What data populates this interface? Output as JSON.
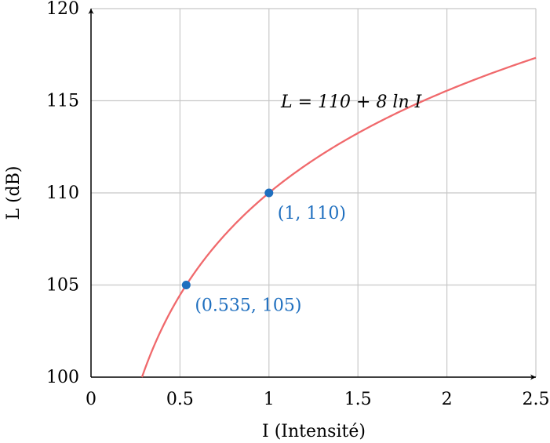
{
  "chart_data": {
    "type": "line",
    "title": "",
    "xlabel": "I (Intensité)",
    "ylabel": "L (dB)",
    "xlim": [
      0,
      2.5
    ],
    "ylim": [
      100,
      120
    ],
    "x_ticks": [
      0,
      0.5,
      1,
      1.5,
      2,
      2.5
    ],
    "x_tick_labels": [
      "0",
      "0.5",
      "1",
      "1.5",
      "2",
      "2.5"
    ],
    "y_ticks": [
      100,
      105,
      110,
      115,
      120
    ],
    "y_tick_labels": [
      "100",
      "105",
      "110",
      "115",
      "120"
    ],
    "grid": true,
    "series": [
      {
        "equation_label": "L = 110 + 8 ln I",
        "formula": {
          "a": 110,
          "b": 8
        },
        "color": "#f0696c"
      }
    ],
    "points": [
      {
        "x": 0.535,
        "y": 105,
        "label": "(0.535, 105)",
        "color": "#1f6fbf"
      },
      {
        "x": 1,
        "y": 110,
        "label": "(1, 110)",
        "color": "#1f6fbf"
      }
    ]
  }
}
